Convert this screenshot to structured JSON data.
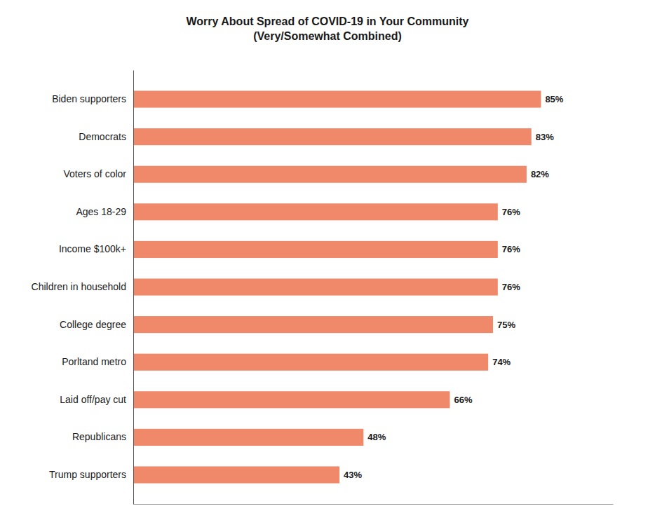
{
  "chart_data": {
    "type": "bar",
    "orientation": "horizontal",
    "title": "Worry About Spread of COVID-19 in Your Community\n(Very/Somewhat Combined)",
    "categories": [
      "Trump supporters",
      "Republicans",
      "Laid off/pay cut",
      "Porltand metro",
      "College degree",
      "Children in household",
      "Income $100k+",
      "Ages 18-29",
      "Voters of color",
      "Democrats",
      "Biden supporters"
    ],
    "values": [
      43,
      48,
      66,
      74,
      75,
      76,
      76,
      76,
      82,
      83,
      85
    ],
    "value_labels": [
      "43%",
      "48%",
      "66%",
      "74%",
      "75%",
      "76%",
      "76%",
      "76%",
      "82%",
      "83%",
      "85%"
    ],
    "data_labels": true,
    "color": "#F0896A",
    "xlim": [
      0,
      100
    ],
    "xticks": [],
    "tick_labels": "y",
    "grid": false
  }
}
